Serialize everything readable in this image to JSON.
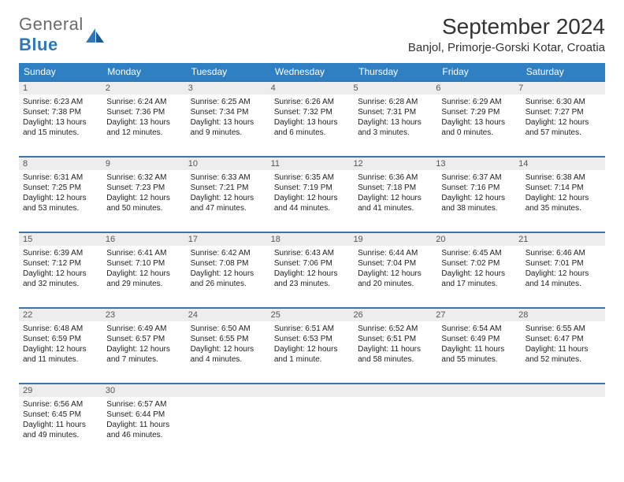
{
  "brand": {
    "part1": "General",
    "part2": "Blue"
  },
  "title": "September 2024",
  "location": "Banjol, Primorje-Gorski Kotar, Croatia",
  "colors": {
    "header_bg": "#2f80c3",
    "rule": "#2f77b8",
    "daynum_bg": "#ededed",
    "text": "#222222",
    "background": "#ffffff"
  },
  "typography": {
    "base_font": "Arial",
    "title_size_pt": 21,
    "body_size_pt": 7.5
  },
  "calendar": {
    "days_of_week": [
      "Sunday",
      "Monday",
      "Tuesday",
      "Wednesday",
      "Thursday",
      "Friday",
      "Saturday"
    ],
    "weeks": [
      [
        {
          "n": "1",
          "sunrise": "Sunrise: 6:23 AM",
          "sunset": "Sunset: 7:38 PM",
          "daylight": "Daylight: 13 hours and 15 minutes."
        },
        {
          "n": "2",
          "sunrise": "Sunrise: 6:24 AM",
          "sunset": "Sunset: 7:36 PM",
          "daylight": "Daylight: 13 hours and 12 minutes."
        },
        {
          "n": "3",
          "sunrise": "Sunrise: 6:25 AM",
          "sunset": "Sunset: 7:34 PM",
          "daylight": "Daylight: 13 hours and 9 minutes."
        },
        {
          "n": "4",
          "sunrise": "Sunrise: 6:26 AM",
          "sunset": "Sunset: 7:32 PM",
          "daylight": "Daylight: 13 hours and 6 minutes."
        },
        {
          "n": "5",
          "sunrise": "Sunrise: 6:28 AM",
          "sunset": "Sunset: 7:31 PM",
          "daylight": "Daylight: 13 hours and 3 minutes."
        },
        {
          "n": "6",
          "sunrise": "Sunrise: 6:29 AM",
          "sunset": "Sunset: 7:29 PM",
          "daylight": "Daylight: 13 hours and 0 minutes."
        },
        {
          "n": "7",
          "sunrise": "Sunrise: 6:30 AM",
          "sunset": "Sunset: 7:27 PM",
          "daylight": "Daylight: 12 hours and 57 minutes."
        }
      ],
      [
        {
          "n": "8",
          "sunrise": "Sunrise: 6:31 AM",
          "sunset": "Sunset: 7:25 PM",
          "daylight": "Daylight: 12 hours and 53 minutes."
        },
        {
          "n": "9",
          "sunrise": "Sunrise: 6:32 AM",
          "sunset": "Sunset: 7:23 PM",
          "daylight": "Daylight: 12 hours and 50 minutes."
        },
        {
          "n": "10",
          "sunrise": "Sunrise: 6:33 AM",
          "sunset": "Sunset: 7:21 PM",
          "daylight": "Daylight: 12 hours and 47 minutes."
        },
        {
          "n": "11",
          "sunrise": "Sunrise: 6:35 AM",
          "sunset": "Sunset: 7:19 PM",
          "daylight": "Daylight: 12 hours and 44 minutes."
        },
        {
          "n": "12",
          "sunrise": "Sunrise: 6:36 AM",
          "sunset": "Sunset: 7:18 PM",
          "daylight": "Daylight: 12 hours and 41 minutes."
        },
        {
          "n": "13",
          "sunrise": "Sunrise: 6:37 AM",
          "sunset": "Sunset: 7:16 PM",
          "daylight": "Daylight: 12 hours and 38 minutes."
        },
        {
          "n": "14",
          "sunrise": "Sunrise: 6:38 AM",
          "sunset": "Sunset: 7:14 PM",
          "daylight": "Daylight: 12 hours and 35 minutes."
        }
      ],
      [
        {
          "n": "15",
          "sunrise": "Sunrise: 6:39 AM",
          "sunset": "Sunset: 7:12 PM",
          "daylight": "Daylight: 12 hours and 32 minutes."
        },
        {
          "n": "16",
          "sunrise": "Sunrise: 6:41 AM",
          "sunset": "Sunset: 7:10 PM",
          "daylight": "Daylight: 12 hours and 29 minutes."
        },
        {
          "n": "17",
          "sunrise": "Sunrise: 6:42 AM",
          "sunset": "Sunset: 7:08 PM",
          "daylight": "Daylight: 12 hours and 26 minutes."
        },
        {
          "n": "18",
          "sunrise": "Sunrise: 6:43 AM",
          "sunset": "Sunset: 7:06 PM",
          "daylight": "Daylight: 12 hours and 23 minutes."
        },
        {
          "n": "19",
          "sunrise": "Sunrise: 6:44 AM",
          "sunset": "Sunset: 7:04 PM",
          "daylight": "Daylight: 12 hours and 20 minutes."
        },
        {
          "n": "20",
          "sunrise": "Sunrise: 6:45 AM",
          "sunset": "Sunset: 7:02 PM",
          "daylight": "Daylight: 12 hours and 17 minutes."
        },
        {
          "n": "21",
          "sunrise": "Sunrise: 6:46 AM",
          "sunset": "Sunset: 7:01 PM",
          "daylight": "Daylight: 12 hours and 14 minutes."
        }
      ],
      [
        {
          "n": "22",
          "sunrise": "Sunrise: 6:48 AM",
          "sunset": "Sunset: 6:59 PM",
          "daylight": "Daylight: 12 hours and 11 minutes."
        },
        {
          "n": "23",
          "sunrise": "Sunrise: 6:49 AM",
          "sunset": "Sunset: 6:57 PM",
          "daylight": "Daylight: 12 hours and 7 minutes."
        },
        {
          "n": "24",
          "sunrise": "Sunrise: 6:50 AM",
          "sunset": "Sunset: 6:55 PM",
          "daylight": "Daylight: 12 hours and 4 minutes."
        },
        {
          "n": "25",
          "sunrise": "Sunrise: 6:51 AM",
          "sunset": "Sunset: 6:53 PM",
          "daylight": "Daylight: 12 hours and 1 minute."
        },
        {
          "n": "26",
          "sunrise": "Sunrise: 6:52 AM",
          "sunset": "Sunset: 6:51 PM",
          "daylight": "Daylight: 11 hours and 58 minutes."
        },
        {
          "n": "27",
          "sunrise": "Sunrise: 6:54 AM",
          "sunset": "Sunset: 6:49 PM",
          "daylight": "Daylight: 11 hours and 55 minutes."
        },
        {
          "n": "28",
          "sunrise": "Sunrise: 6:55 AM",
          "sunset": "Sunset: 6:47 PM",
          "daylight": "Daylight: 11 hours and 52 minutes."
        }
      ],
      [
        {
          "n": "29",
          "sunrise": "Sunrise: 6:56 AM",
          "sunset": "Sunset: 6:45 PM",
          "daylight": "Daylight: 11 hours and 49 minutes."
        },
        {
          "n": "30",
          "sunrise": "Sunrise: 6:57 AM",
          "sunset": "Sunset: 6:44 PM",
          "daylight": "Daylight: 11 hours and 46 minutes."
        },
        {
          "n": "",
          "sunrise": "",
          "sunset": "",
          "daylight": ""
        },
        {
          "n": "",
          "sunrise": "",
          "sunset": "",
          "daylight": ""
        },
        {
          "n": "",
          "sunrise": "",
          "sunset": "",
          "daylight": ""
        },
        {
          "n": "",
          "sunrise": "",
          "sunset": "",
          "daylight": ""
        },
        {
          "n": "",
          "sunrise": "",
          "sunset": "",
          "daylight": ""
        }
      ]
    ]
  }
}
